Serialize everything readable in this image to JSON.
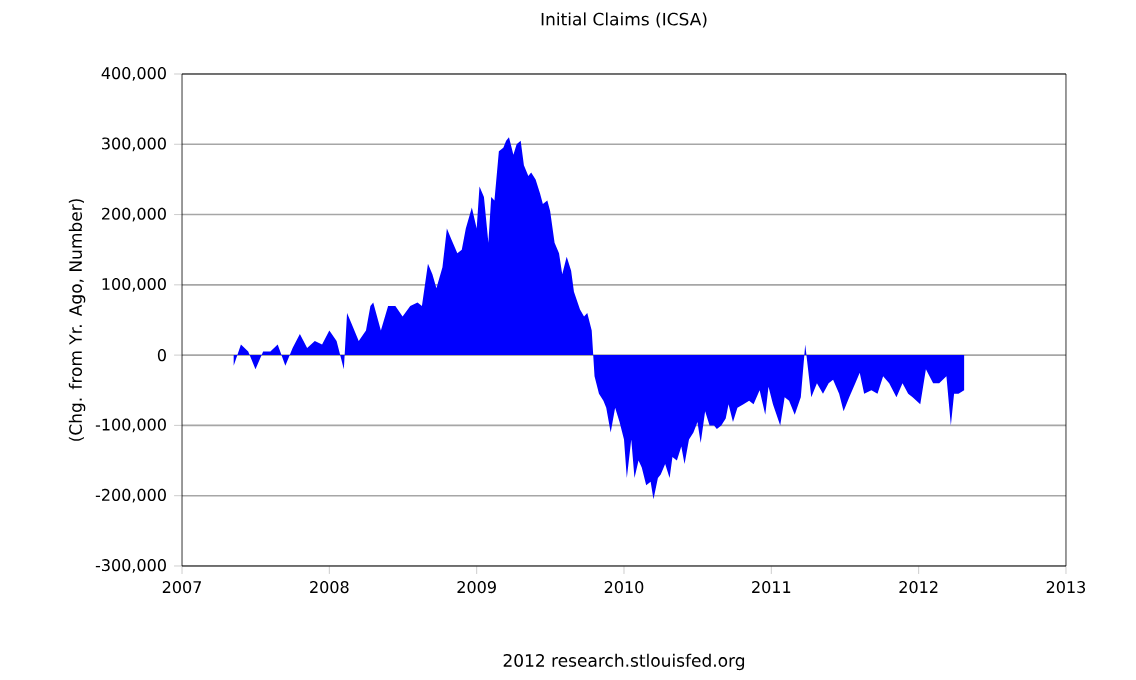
{
  "chart_data": {
    "type": "area",
    "title": "Initial Claims (ICSA)",
    "ylabel": "(Chg. from Yr. Ago, Number)",
    "color": "#0000ff",
    "grid": "y",
    "x": [
      "2007-05-09",
      "2007-05-27",
      "2007-06-14",
      "2007-07-02",
      "2007-07-21",
      "2007-08-08",
      "2007-08-26",
      "2007-09-14",
      "2007-10-02",
      "2007-10-20",
      "2007-11-07",
      "2007-11-26",
      "2007-12-14",
      "2008-01-01",
      "2008-01-19",
      "2008-02-06",
      "2008-02-14",
      "2008-02-25",
      "2008-03-14",
      "2008-04-01",
      "2008-04-12",
      "2008-04-19",
      "2008-05-08",
      "2008-05-26",
      "2008-06-13",
      "2008-07-01",
      "2008-07-20",
      "2008-08-07",
      "2008-08-18",
      "2008-09-02",
      "2008-09-13",
      "2008-09-23",
      "2008-10-08",
      "2008-10-19",
      "2008-10-30",
      "2008-11-14",
      "2008-11-25",
      "2008-12-05",
      "2008-12-20",
      "2009-01-01",
      "2009-01-08",
      "2009-01-19",
      "2009-01-30",
      "2009-02-06",
      "2009-02-14",
      "2009-02-25",
      "2009-03-08",
      "2009-03-15",
      "2009-03-22",
      "2009-04-02",
      "2009-04-10",
      "2009-04-20",
      "2009-04-28",
      "2009-05-09",
      "2009-05-16",
      "2009-05-27",
      "2009-06-07",
      "2009-06-14",
      "2009-06-25",
      "2009-07-02",
      "2009-07-13",
      "2009-07-24",
      "2009-08-01",
      "2009-08-12",
      "2009-08-23",
      "2009-08-30",
      "2009-09-14",
      "2009-09-24",
      "2009-10-02",
      "2009-10-13",
      "2009-10-20",
      "2009-10-31",
      "2009-11-11",
      "2009-11-18",
      "2009-11-29",
      "2009-12-10",
      "2009-12-21",
      "2010-01-01",
      "2010-01-08",
      "2010-01-19",
      "2010-01-27",
      "2010-02-06",
      "2010-02-14",
      "2010-02-25",
      "2010-03-08",
      "2010-03-15",
      "2010-03-26",
      "2010-04-02",
      "2010-04-13",
      "2010-04-24",
      "2010-05-01",
      "2010-05-12",
      "2010-05-23",
      "2010-05-31",
      "2010-06-11",
      "2010-06-22",
      "2010-07-02",
      "2010-07-10",
      "2010-07-21",
      "2010-08-01",
      "2010-08-12",
      "2010-08-19",
      "2010-08-30",
      "2010-09-10",
      "2010-09-17",
      "2010-09-28",
      "2010-10-09",
      "2010-10-24",
      "2010-11-07",
      "2010-11-18",
      "2010-12-03",
      "2010-12-17",
      "2010-12-25",
      "2011-01-05",
      "2011-01-23",
      "2011-02-03",
      "2011-02-14",
      "2011-02-28",
      "2011-03-15",
      "2011-03-26",
      "2011-04-02",
      "2011-04-10",
      "2011-04-24",
      "2011-05-09",
      "2011-05-23",
      "2011-06-03",
      "2011-06-18",
      "2011-06-29",
      "2011-07-13",
      "2011-07-28",
      "2011-08-08",
      "2011-08-19",
      "2011-09-06",
      "2011-09-21",
      "2011-10-05",
      "2011-10-20",
      "2011-11-07",
      "2011-11-22",
      "2011-12-06",
      "2011-12-17",
      "2012-01-05",
      "2012-01-19",
      "2012-02-06",
      "2012-02-21",
      "2012-03-10",
      "2012-03-21",
      "2012-03-29",
      "2012-04-09",
      "2012-04-23"
    ],
    "values": [
      -15000,
      15000,
      5000,
      -20000,
      5000,
      5000,
      15000,
      -15000,
      10000,
      30000,
      10000,
      20000,
      15000,
      35000,
      20000,
      -20000,
      60000,
      45000,
      20000,
      35000,
      70000,
      75000,
      35000,
      70000,
      70000,
      55000,
      70000,
      75000,
      70000,
      130000,
      115000,
      95000,
      125000,
      180000,
      165000,
      145000,
      150000,
      180000,
      210000,
      180000,
      240000,
      225000,
      160000,
      225000,
      220000,
      290000,
      295000,
      305000,
      310000,
      285000,
      300000,
      305000,
      270000,
      255000,
      260000,
      250000,
      230000,
      215000,
      220000,
      205000,
      160000,
      145000,
      115000,
      140000,
      120000,
      90000,
      65000,
      55000,
      60000,
      35000,
      -30000,
      -55000,
      -65000,
      -75000,
      -110000,
      -75000,
      -95000,
      -120000,
      -175000,
      -120000,
      -175000,
      -150000,
      -160000,
      -185000,
      -180000,
      -205000,
      -175000,
      -170000,
      -155000,
      -175000,
      -145000,
      -150000,
      -130000,
      -155000,
      -120000,
      -110000,
      -95000,
      -125000,
      -80000,
      -100000,
      -100000,
      -105000,
      -100000,
      -90000,
      -70000,
      -95000,
      -75000,
      -70000,
      -65000,
      -70000,
      -50000,
      -85000,
      -45000,
      -70000,
      -100000,
      -60000,
      -65000,
      -85000,
      -60000,
      15000,
      -20000,
      -60000,
      -40000,
      -55000,
      -40000,
      -35000,
      -55000,
      -80000,
      -60000,
      -40000,
      -25000,
      -55000,
      -50000,
      -55000,
      -30000,
      -40000,
      -60000,
      -40000,
      -55000,
      -60000,
      -70000,
      -20000,
      -40000,
      -40000,
      -30000,
      -100000,
      -55000,
      -55000,
      -50000
    ],
    "xlim": [
      "2007",
      "2013"
    ],
    "xticks": [
      "2007",
      "2008",
      "2009",
      "2010",
      "2011",
      "2012",
      "2013"
    ],
    "ylim": [
      -300000,
      400000
    ],
    "yticks": [
      {
        "value": -300000,
        "label": "-300,000"
      },
      {
        "value": -200000,
        "label": "-200,000"
      },
      {
        "value": -100000,
        "label": "-100,000"
      },
      {
        "value": 0,
        "label": "0"
      },
      {
        "value": 100000,
        "label": "100,000"
      },
      {
        "value": 200000,
        "label": "200,000"
      },
      {
        "value": 300000,
        "label": "300,000"
      },
      {
        "value": 400000,
        "label": "400,000"
      }
    ],
    "annotations": [
      "2012 research.stlouisfed.org"
    ]
  }
}
